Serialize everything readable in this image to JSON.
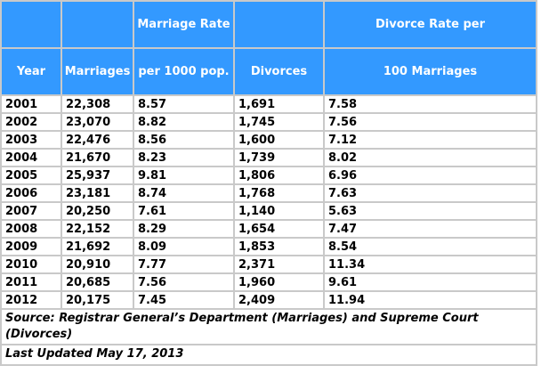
{
  "colors": {
    "header_bg": "#3399ff",
    "header_text": "#ffffff",
    "body_text": "#000000",
    "inner_border": "#c9c9c9",
    "outer_border": "#929292",
    "page_bg": "#ffffff"
  },
  "table": {
    "header_row1": {
      "marriage_rate": "Marriage Rate",
      "divorce_rate": "Divorce Rate per"
    },
    "header_row2": {
      "year": "Year",
      "marriages": "Marriages",
      "marriage_rate": "per 1000 pop.",
      "divorces": "Divorces",
      "divorce_rate": "100 Marriages"
    },
    "rows": [
      {
        "year": "2001",
        "marriages": "22,308",
        "marriage_rate": "8.57",
        "divorces": "1,691",
        "divorce_rate": "7.58"
      },
      {
        "year": "2002",
        "marriages": "23,070",
        "marriage_rate": "8.82",
        "divorces": "1,745",
        "divorce_rate": "7.56"
      },
      {
        "year": "2003",
        "marriages": "22,476",
        "marriage_rate": "8.56",
        "divorces": "1,600",
        "divorce_rate": "7.12"
      },
      {
        "year": "2004",
        "marriages": "21,670",
        "marriage_rate": "8.23",
        "divorces": "1,739",
        "divorce_rate": "8.02"
      },
      {
        "year": "2005",
        "marriages": "25,937",
        "marriage_rate": "9.81",
        "divorces": "1,806",
        "divorce_rate": "6.96"
      },
      {
        "year": "2006",
        "marriages": "23,181",
        "marriage_rate": "8.74",
        "divorces": "1,768",
        "divorce_rate": "7.63"
      },
      {
        "year": "2007",
        "marriages": "20,250",
        "marriage_rate": "7.61",
        "divorces": "1,140",
        "divorce_rate": "5.63"
      },
      {
        "year": "2008",
        "marriages": "22,152",
        "marriage_rate": "8.29",
        "divorces": "1,654",
        "divorce_rate": "7.47"
      },
      {
        "year": "2009",
        "marriages": "21,692",
        "marriage_rate": "8.09",
        "divorces": "1,853",
        "divorce_rate": "8.54"
      },
      {
        "year": "2010",
        "marriages": "20,910",
        "marriage_rate": "7.77",
        "divorces": "2,371",
        "divorce_rate": "11.34"
      },
      {
        "year": "2011",
        "marriages": "20,685",
        "marriage_rate": "7.56",
        "divorces": "1,960",
        "divorce_rate": "9.61"
      },
      {
        "year": "2012",
        "marriages": "20,175",
        "marriage_rate": "7.45",
        "divorces": "2,409",
        "divorce_rate": "11.94"
      }
    ],
    "source": "Source: Registrar General’s Department (Marriages) and Supreme Court (Divorces)",
    "last_updated": "Last Updated May 17, 2013"
  },
  "chart_data": {
    "type": "table",
    "columns": [
      "Year",
      "Marriages",
      "Marriage Rate per 1000 pop.",
      "Divorces",
      "Divorce Rate per 100 Marriages"
    ],
    "years": [
      2001,
      2002,
      2003,
      2004,
      2005,
      2006,
      2007,
      2008,
      2009,
      2010,
      2011,
      2012
    ],
    "series": [
      {
        "name": "Marriages",
        "values": [
          22308,
          23070,
          22476,
          21670,
          25937,
          23181,
          20250,
          22152,
          21692,
          20910,
          20685,
          20175
        ]
      },
      {
        "name": "Marriage Rate per 1000 pop.",
        "values": [
          8.57,
          8.82,
          8.56,
          8.23,
          9.81,
          8.74,
          7.61,
          8.29,
          8.09,
          7.77,
          7.56,
          7.45
        ]
      },
      {
        "name": "Divorces",
        "values": [
          1691,
          1745,
          1600,
          1739,
          1806,
          1768,
          1140,
          1654,
          1853,
          2371,
          1960,
          2409
        ]
      },
      {
        "name": "Divorce Rate per 100 Marriages",
        "values": [
          7.58,
          7.56,
          7.12,
          8.02,
          6.96,
          7.63,
          5.63,
          7.47,
          8.54,
          11.34,
          9.61,
          11.94
        ]
      }
    ],
    "source": "Source: Registrar General’s Department (Marriages) and Supreme Court (Divorces)",
    "last_updated": "Last Updated May 17, 2013"
  }
}
